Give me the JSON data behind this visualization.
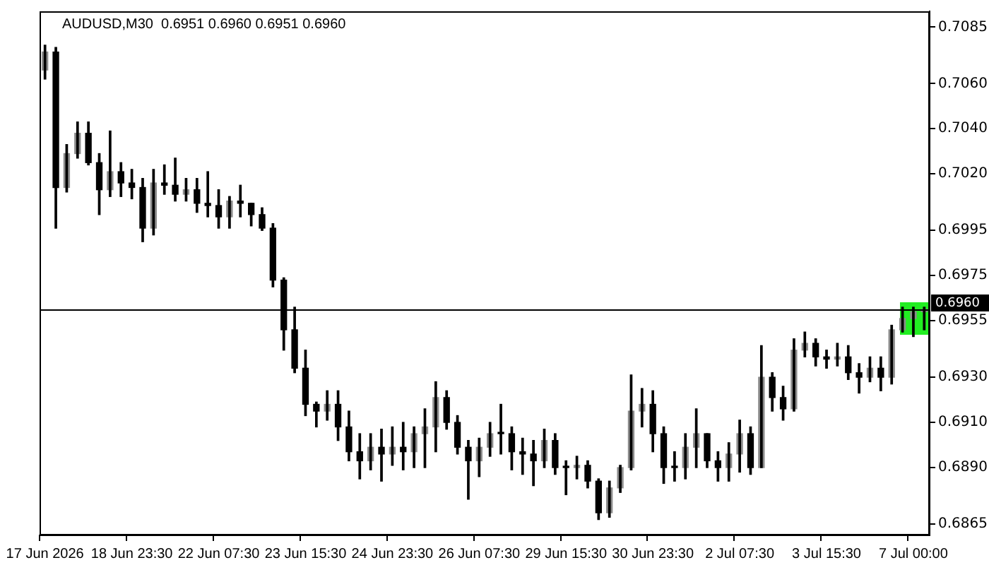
{
  "chart_data": {
    "type": "candlestick",
    "title": "AUDUSD,M30  0.6951 0.6960 0.6951 0.6960",
    "color": "#000000",
    "categories": [
      "17 Jun 2026",
      null,
      null,
      null,
      null,
      null,
      null,
      null,
      "18 Jun 23:30",
      null,
      null,
      null,
      null,
      null,
      null,
      null,
      "22 Jun 07:30",
      null,
      null,
      null,
      null,
      null,
      null,
      null,
      "23 Jun 15:30",
      null,
      null,
      null,
      null,
      null,
      null,
      null,
      "24 Jun 23:30",
      null,
      null,
      null,
      null,
      null,
      null,
      null,
      "26 Jun 07:30",
      null,
      null,
      null,
      null,
      null,
      null,
      null,
      "29 Jun 15:30",
      null,
      null,
      null,
      null,
      null,
      null,
      null,
      "30 Jun 23:30",
      null,
      null,
      null,
      null,
      null,
      null,
      null,
      "2 Jul 07:30",
      null,
      null,
      null,
      null,
      null,
      null,
      null,
      "3 Jul 15:30",
      null,
      null,
      null,
      null,
      null,
      null,
      null,
      "7 Jul 00:00",
      null
    ],
    "ohlc": [
      [
        0.7066,
        0.7077,
        0.7062,
        0.7074
      ],
      [
        0.7074,
        0.7076,
        0.6996,
        0.7014
      ],
      [
        0.7014,
        0.7033,
        0.7012,
        0.7029
      ],
      [
        0.7029,
        0.7043,
        0.7027,
        0.7038
      ],
      [
        0.7038,
        0.7043,
        0.7024,
        0.7025
      ],
      [
        0.7025,
        0.7029,
        0.7002,
        0.7013
      ],
      [
        0.7013,
        0.7039,
        0.701,
        0.7021
      ],
      [
        0.7021,
        0.7025,
        0.701,
        0.7016
      ],
      [
        0.7016,
        0.7022,
        0.7009,
        0.7014
      ],
      [
        0.7014,
        0.7018,
        0.699,
        0.6996
      ],
      [
        0.6996,
        0.7022,
        0.6993,
        0.7016
      ],
      [
        0.7016,
        0.7024,
        0.7011,
        0.7015
      ],
      [
        0.7015,
        0.7027,
        0.7008,
        0.7011
      ],
      [
        0.7011,
        0.7018,
        0.7008,
        0.7013
      ],
      [
        0.7013,
        0.7018,
        0.7003,
        0.7007
      ],
      [
        0.7007,
        0.7021,
        0.7001,
        0.7006
      ],
      [
        0.7006,
        0.7013,
        0.6996,
        0.7001
      ],
      [
        0.7001,
        0.701,
        0.6996,
        0.7008
      ],
      [
        0.7008,
        0.7015,
        0.7001,
        0.7007
      ],
      [
        0.7007,
        0.7007,
        0.6997,
        0.7002
      ],
      [
        0.7002,
        0.7005,
        0.6995,
        0.6996
      ],
      [
        0.6996,
        0.6998,
        0.697,
        0.6973
      ],
      [
        0.6973,
        0.6974,
        0.6942,
        0.6951
      ],
      [
        0.6951,
        0.6961,
        0.6932,
        0.6934
      ],
      [
        0.6934,
        0.6942,
        0.6913,
        0.6918
      ],
      [
        0.6918,
        0.6919,
        0.6908,
        0.6915
      ],
      [
        0.6915,
        0.6924,
        0.6911,
        0.6918
      ],
      [
        0.6918,
        0.6924,
        0.6902,
        0.6908
      ],
      [
        0.6908,
        0.6915,
        0.6893,
        0.6897
      ],
      [
        0.6897,
        0.6905,
        0.6885,
        0.6893
      ],
      [
        0.6893,
        0.6905,
        0.6889,
        0.6899
      ],
      [
        0.6899,
        0.6907,
        0.6884,
        0.6896
      ],
      [
        0.6896,
        0.6908,
        0.6891,
        0.6899
      ],
      [
        0.6899,
        0.691,
        0.6889,
        0.6897
      ],
      [
        0.6897,
        0.6908,
        0.689,
        0.6905
      ],
      [
        0.6905,
        0.6916,
        0.689,
        0.6908
      ],
      [
        0.6908,
        0.6928,
        0.6897,
        0.6921
      ],
      [
        0.6921,
        0.6924,
        0.6907,
        0.691
      ],
      [
        0.691,
        0.6913,
        0.6896,
        0.6899
      ],
      [
        0.6899,
        0.6902,
        0.6876,
        0.6893
      ],
      [
        0.6893,
        0.6903,
        0.6886,
        0.6899
      ],
      [
        0.6899,
        0.691,
        0.6895,
        0.6905
      ],
      [
        0.6905,
        0.6918,
        0.6896,
        0.6905
      ],
      [
        0.6905,
        0.6908,
        0.6889,
        0.6897
      ],
      [
        0.6897,
        0.6903,
        0.6887,
        0.6896
      ],
      [
        0.6896,
        0.6902,
        0.6882,
        0.6893
      ],
      [
        0.6893,
        0.6907,
        0.689,
        0.6902
      ],
      [
        0.6902,
        0.6905,
        0.6887,
        0.689
      ],
      [
        0.689,
        0.6893,
        0.6878,
        0.689
      ],
      [
        0.689,
        0.6895,
        0.6885,
        0.6891
      ],
      [
        0.6891,
        0.6893,
        0.6881,
        0.6884
      ],
      [
        0.6884,
        0.6885,
        0.6867,
        0.687
      ],
      [
        0.687,
        0.6884,
        0.6868,
        0.6881
      ],
      [
        0.6881,
        0.6891,
        0.6879,
        0.689
      ],
      [
        0.689,
        0.6931,
        0.6889,
        0.6915
      ],
      [
        0.6915,
        0.6925,
        0.6908,
        0.6918
      ],
      [
        0.6918,
        0.6924,
        0.6897,
        0.6905
      ],
      [
        0.6905,
        0.6908,
        0.6883,
        0.689
      ],
      [
        0.689,
        0.6897,
        0.6884,
        0.689
      ],
      [
        0.689,
        0.6905,
        0.6885,
        0.6899
      ],
      [
        0.6899,
        0.6916,
        0.689,
        0.6905
      ],
      [
        0.6905,
        0.6905,
        0.689,
        0.6893
      ],
      [
        0.6893,
        0.6897,
        0.6884,
        0.689
      ],
      [
        0.689,
        0.6901,
        0.6884,
        0.6896
      ],
      [
        0.6896,
        0.6911,
        0.6888,
        0.6905
      ],
      [
        0.6905,
        0.6908,
        0.6887,
        0.689
      ],
      [
        0.689,
        0.6944,
        0.689,
        0.693
      ],
      [
        0.693,
        0.6932,
        0.6915,
        0.6921
      ],
      [
        0.6921,
        0.6926,
        0.6911,
        0.6916
      ],
      [
        0.6916,
        0.6947,
        0.6915,
        0.6942
      ],
      [
        0.6942,
        0.695,
        0.6939,
        0.6945
      ],
      [
        0.6945,
        0.6947,
        0.6935,
        0.6939
      ],
      [
        0.6939,
        0.6942,
        0.6934,
        0.6938
      ],
      [
        0.6938,
        0.6945,
        0.6935,
        0.6939
      ],
      [
        0.6939,
        0.6944,
        0.6929,
        0.6932
      ],
      [
        0.6932,
        0.6936,
        0.6923,
        0.693
      ],
      [
        0.693,
        0.6939,
        0.6928,
        0.6934
      ],
      [
        0.6934,
        0.6939,
        0.6924,
        0.693
      ],
      [
        0.693,
        0.6953,
        0.6927,
        0.6951
      ],
      [
        0.6951,
        0.6961,
        0.695,
        0.6956
      ],
      [
        0.6956,
        0.6961,
        0.6948,
        0.6959
      ],
      [
        0.6959,
        0.6961,
        0.6951,
        0.696
      ]
    ],
    "colors": [
      "#8c8c8c",
      "#000000",
      "#8c8c8c",
      "#8c8c8c",
      "#000000",
      "#000000",
      "#8c8c8c",
      "#000000",
      "#000000",
      "#000000",
      "#8c8c8c",
      "#000000",
      "#000000",
      "#8c8c8c",
      "#000000",
      "#000000",
      "#000000",
      "#8c8c8c",
      "#000000",
      "#000000",
      "#000000",
      "#000000",
      "#000000",
      "#000000",
      "#000000",
      "#000000",
      "#8c8c8c",
      "#000000",
      "#000000",
      "#000000",
      "#8c8c8c",
      "#000000",
      "#8c8c8c",
      "#000000",
      "#8c8c8c",
      "#8c8c8c",
      "#8c8c8c",
      "#000000",
      "#000000",
      "#000000",
      "#8c8c8c",
      "#8c8c8c",
      "#000000",
      "#000000",
      "#000000",
      "#000000",
      "#8c8c8c",
      "#000000",
      "#000000",
      "#8c8c8c",
      "#000000",
      "#000000",
      "#8c8c8c",
      "#8c8c8c",
      "#8c8c8c",
      "#8c8c8c",
      "#000000",
      "#000000",
      "#000000",
      "#8c8c8c",
      "#8c8c8c",
      "#000000",
      "#000000",
      "#8c8c8c",
      "#8c8c8c",
      "#000000",
      "#8c8c8c",
      "#000000",
      "#000000",
      "#8c8c8c",
      "#8c8c8c",
      "#000000",
      "#000000",
      "#8c8c8c",
      "#000000",
      "#000000",
      "#8c8c8c",
      "#000000",
      "#8c8c8c",
      "#8c8c8c",
      "#8c8c8c",
      "#8c8c8c"
    ],
    "ylim": [
      0.686,
      0.7092
    ],
    "yticks": [
      0.6865,
      {
        "value": 0.689,
        "label": "0.6890"
      },
      {
        "value": 0.691,
        "label": "0.6910"
      },
      {
        "value": 0.693,
        "label": "0.6930"
      },
      0.6955,
      0.6975,
      0.6995,
      {
        "value": 0.702,
        "label": "0.7020"
      },
      {
        "value": 0.704,
        "label": "0.7040"
      },
      {
        "value": 0.706,
        "label": "0.7060"
      },
      0.7085
    ],
    "ref_lines": [
      {
        "axis": "y",
        "value": 0.696,
        "label": "0.6960",
        "color": "#000000"
      }
    ],
    "grid": false,
    "legend": false
  }
}
